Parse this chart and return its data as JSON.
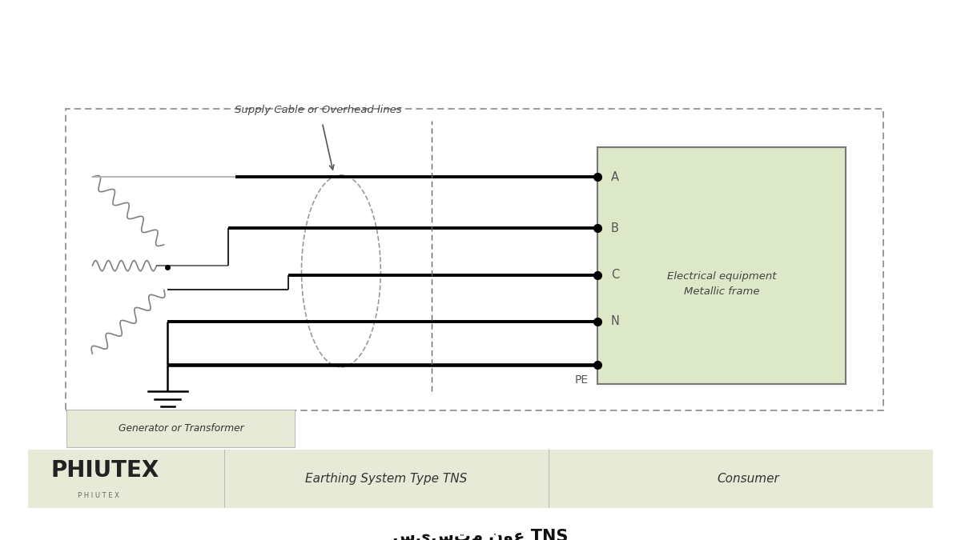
{
  "bg_color": "#ffffff",
  "label_bg": "#e8ead8",
  "consumer_box_bg": "#dde8c8",
  "title_text": "سیستم نوع TNS",
  "subtitle_text": "Earthing System Type TNS",
  "consumer_text": "Consumer",
  "gen_label": "Generator or Transformer",
  "elec_eq_line1": "Electrical equipment",
  "elec_eq_line2": "Metallic frame",
  "supply_cable_label": "Supply Cable or Overhead lines",
  "phase_labels": [
    "A",
    "B",
    "C",
    "N",
    "PE"
  ],
  "wire_color_gray": "#888888",
  "phiutex_text": "PHIUTEX",
  "phiutex_small": "P H I U T E X"
}
